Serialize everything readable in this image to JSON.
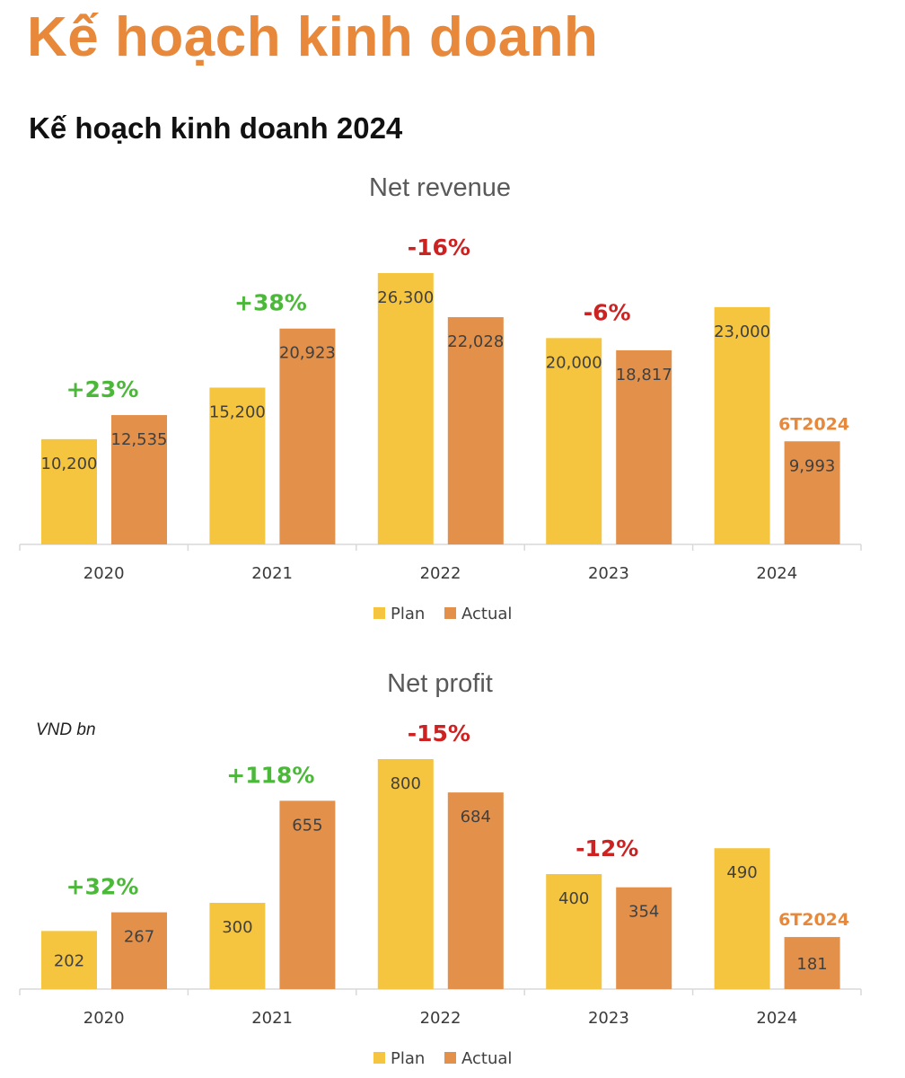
{
  "header": {
    "title": "Kế hoạch kinh doanh",
    "subtitle": "Kế hoạch kinh doanh 2024"
  },
  "colors": {
    "title": "#e8883a",
    "plan": "#f5c540",
    "actual": "#e3904a",
    "positive": "#4cb83a",
    "negative": "#cc2222",
    "note": "#e8883a"
  },
  "chart_data": [
    {
      "type": "bar",
      "title": "Net revenue",
      "unit_label": "",
      "categories": [
        "2020",
        "2021",
        "2022",
        "2023",
        "2024"
      ],
      "series": [
        {
          "name": "Plan",
          "values": [
            10200,
            15200,
            26300,
            20000,
            23000
          ],
          "labels": [
            "10,200",
            "15,200",
            "26,300",
            "20,000",
            "23,000"
          ]
        },
        {
          "name": "Actual",
          "values": [
            12535,
            20923,
            22028,
            18817,
            9993
          ],
          "labels": [
            "12,535",
            "20,923",
            "22,028",
            "18,817",
            "9,993"
          ]
        }
      ],
      "annotations": [
        {
          "category": "2020",
          "text": "+23%",
          "sentiment": "positive"
        },
        {
          "category": "2021",
          "text": "+38%",
          "sentiment": "positive"
        },
        {
          "category": "2022",
          "text": "-16%",
          "sentiment": "negative"
        },
        {
          "category": "2023",
          "text": "-6%",
          "sentiment": "negative"
        },
        {
          "category": "2024",
          "text": "6T2024",
          "sentiment": "note"
        }
      ],
      "ylim": [
        0,
        30000
      ],
      "grid": false,
      "legend": "bottom"
    },
    {
      "type": "bar",
      "title": "Net profit",
      "unit_label": "VND bn",
      "categories": [
        "2020",
        "2021",
        "2022",
        "2023",
        "2024"
      ],
      "series": [
        {
          "name": "Plan",
          "values": [
            202,
            300,
            800,
            400,
            490
          ],
          "labels": [
            "202",
            "300",
            "800",
            "400",
            "490"
          ]
        },
        {
          "name": "Actual",
          "values": [
            267,
            655,
            684,
            354,
            181
          ],
          "labels": [
            "267",
            "655",
            "684",
            "354",
            "181"
          ]
        }
      ],
      "annotations": [
        {
          "category": "2020",
          "text": "+32%",
          "sentiment": "positive"
        },
        {
          "category": "2021",
          "text": "+118%",
          "sentiment": "positive"
        },
        {
          "category": "2022",
          "text": "-15%",
          "sentiment": "negative"
        },
        {
          "category": "2023",
          "text": "-12%",
          "sentiment": "negative"
        },
        {
          "category": "2024",
          "text": "6T2024",
          "sentiment": "note"
        }
      ],
      "ylim": [
        0,
        1000
      ],
      "grid": false,
      "legend": "bottom"
    }
  ]
}
